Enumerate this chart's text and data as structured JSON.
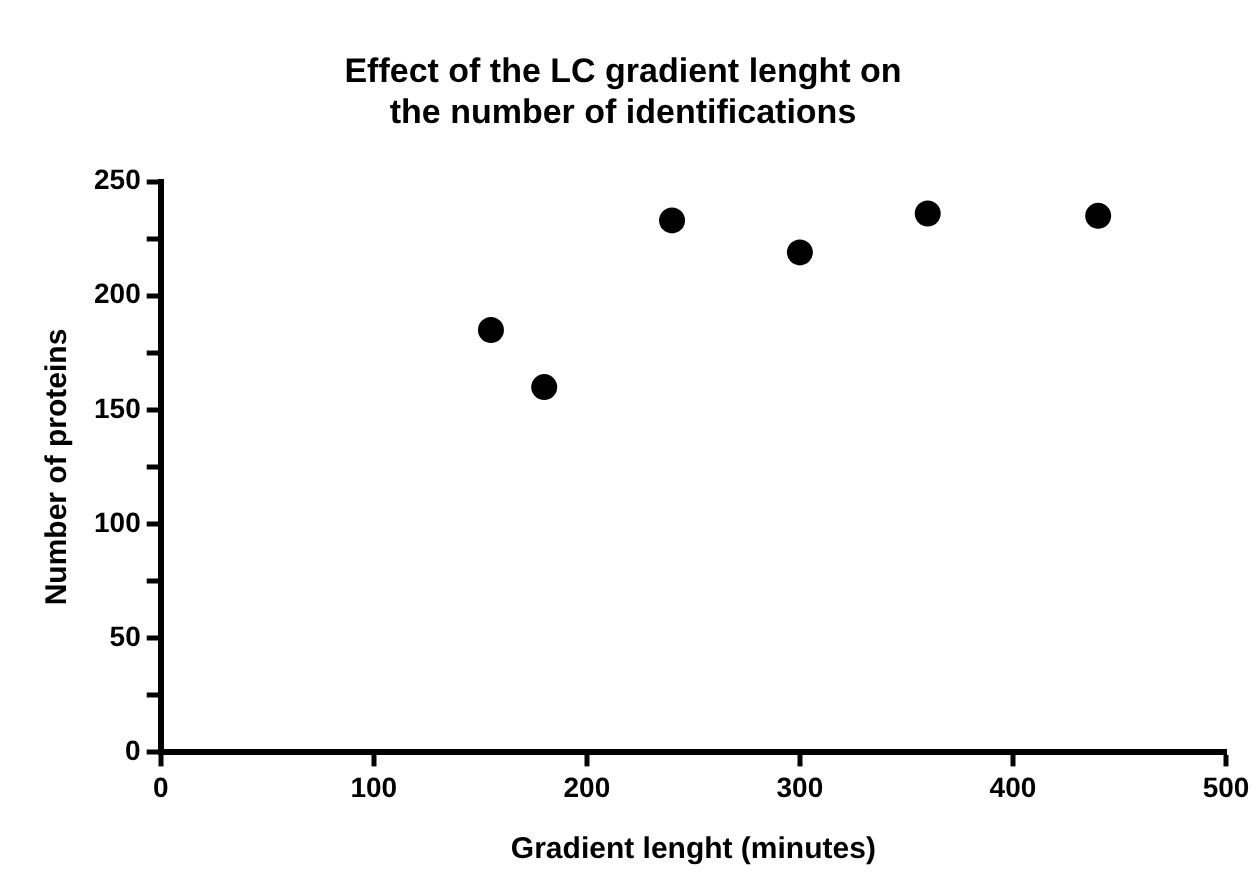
{
  "chart_data": {
    "type": "scatter",
    "title": [
      "Effect of the LC gradient lenght on",
      "the number of identifications"
    ],
    "xlabel": "Gradient lenght (minutes)",
    "ylabel": "Number of proteins",
    "x": [
      155,
      180,
      240,
      300,
      360,
      440
    ],
    "values": [
      185,
      160,
      233,
      219,
      236,
      235
    ],
    "color": "#000000",
    "marker": "circle",
    "xlim": [
      0,
      500
    ],
    "xticks": [
      0,
      100,
      200,
      300,
      400,
      500
    ],
    "ylim": [
      0,
      250
    ],
    "yticks": [
      0,
      {
        "value": 25,
        "label": null
      },
      50,
      {
        "value": 75,
        "label": null
      },
      100,
      {
        "value": 125,
        "label": null
      },
      150,
      {
        "value": 175,
        "label": null
      },
      200,
      {
        "value": 225,
        "label": null
      },
      250
    ],
    "grid": false,
    "legend": false
  }
}
